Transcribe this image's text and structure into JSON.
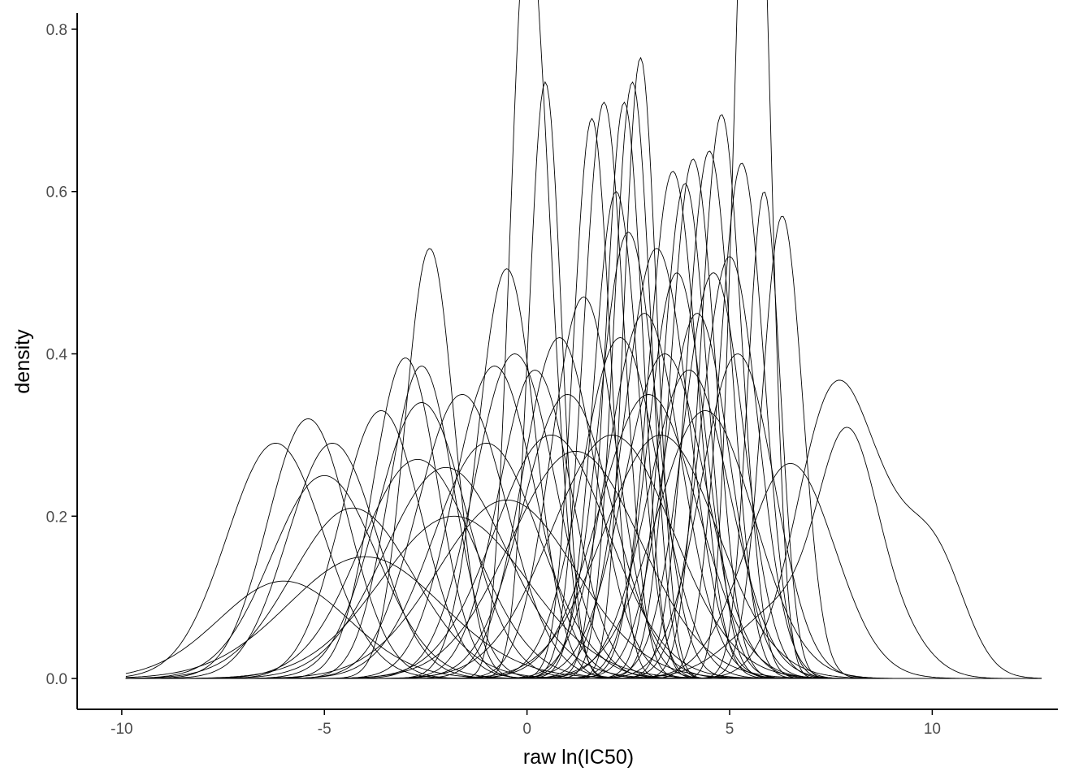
{
  "chart_data": {
    "type": "line",
    "title": "",
    "xlabel": "raw ln(IC50)",
    "ylabel": "density",
    "xlim": [
      -11.1,
      13.1
    ],
    "ylim": [
      -0.038,
      0.82
    ],
    "x_ticks": [
      -10,
      -5,
      0,
      5,
      10
    ],
    "x_tick_labels": [
      "-10",
      "-5",
      "0",
      "5",
      "10"
    ],
    "y_ticks": [
      0.0,
      0.2,
      0.4,
      0.6,
      0.8
    ],
    "y_tick_labels": [
      "0.0",
      "0.2",
      "0.4",
      "0.6",
      "0.8"
    ],
    "x_range_of_curves": [
      -9.9,
      12.7
    ],
    "grid": false,
    "legend": "none",
    "line_color": "#000000",
    "series": [
      {
        "peaks": [
          [
            -6.2,
            0.29,
            1.2
          ]
        ]
      },
      {
        "peaks": [
          [
            -5.4,
            0.32,
            1.0
          ]
        ]
      },
      {
        "peaks": [
          [
            -5.0,
            0.25,
            1.3
          ]
        ]
      },
      {
        "peaks": [
          [
            -4.8,
            0.29,
            1.1
          ]
        ]
      },
      {
        "peaks": [
          [
            -4.3,
            0.21,
            1.5
          ]
        ]
      },
      {
        "peaks": [
          [
            -3.6,
            0.33,
            1.0
          ]
        ]
      },
      {
        "peaks": [
          [
            -3.0,
            0.395,
            0.8
          ]
        ]
      },
      {
        "peaks": [
          [
            -2.6,
            0.385,
            0.8
          ]
        ]
      },
      {
        "peaks": [
          [
            -2.6,
            0.34,
            1.1
          ]
        ]
      },
      {
        "peaks": [
          [
            -2.4,
            0.53,
            0.6
          ]
        ]
      },
      {
        "peaks": [
          [
            -2.7,
            0.27,
            1.4
          ]
        ]
      },
      {
        "peaks": [
          [
            -2.0,
            0.26,
            1.5
          ]
        ]
      },
      {
        "peaks": [
          [
            -1.6,
            0.35,
            1.1
          ]
        ]
      },
      {
        "peaks": [
          [
            -1.0,
            0.29,
            1.3
          ]
        ]
      },
      {
        "peaks": [
          [
            -0.8,
            0.385,
            1.0
          ]
        ]
      },
      {
        "peaks": [
          [
            -0.5,
            0.505,
            0.7
          ]
        ]
      },
      {
        "peaks": [
          [
            -0.3,
            0.4,
            1.0
          ]
        ]
      },
      {
        "peaks": [
          [
            -0.1,
            0.66,
            0.38
          ],
          [
            0.4,
            0.45,
            0.45
          ]
        ]
      },
      {
        "peaks": [
          [
            0.45,
            0.735,
            0.4
          ]
        ]
      },
      {
        "peaks": [
          [
            0.2,
            0.38,
            0.9
          ]
        ]
      },
      {
        "peaks": [
          [
            0.8,
            0.42,
            0.9
          ]
        ]
      },
      {
        "peaks": [
          [
            1.4,
            0.47,
            0.8
          ]
        ]
      },
      {
        "peaks": [
          [
            1.6,
            0.69,
            0.45
          ]
        ]
      },
      {
        "peaks": [
          [
            1.9,
            0.71,
            0.5
          ]
        ]
      },
      {
        "peaks": [
          [
            2.2,
            0.6,
            0.55
          ]
        ]
      },
      {
        "peaks": [
          [
            2.4,
            0.71,
            0.45
          ]
        ]
      },
      {
        "peaks": [
          [
            2.6,
            0.735,
            0.45
          ]
        ]
      },
      {
        "peaks": [
          [
            2.8,
            0.765,
            0.4
          ]
        ]
      },
      {
        "peaks": [
          [
            2.5,
            0.55,
            0.7
          ]
        ]
      },
      {
        "peaks": [
          [
            2.9,
            0.45,
            0.9
          ]
        ]
      },
      {
        "peaks": [
          [
            3.2,
            0.53,
            0.8
          ]
        ]
      },
      {
        "peaks": [
          [
            3.6,
            0.625,
            0.6
          ]
        ]
      },
      {
        "peaks": [
          [
            3.9,
            0.61,
            0.55
          ]
        ]
      },
      {
        "peaks": [
          [
            4.1,
            0.64,
            0.55
          ]
        ]
      },
      {
        "peaks": [
          [
            4.5,
            0.65,
            0.55
          ]
        ]
      },
      {
        "peaks": [
          [
            4.8,
            0.695,
            0.5
          ]
        ]
      },
      {
        "peaks": [
          [
            5.4,
            0.77,
            0.38
          ],
          [
            5.75,
            0.62,
            0.35
          ]
        ]
      },
      {
        "peaks": [
          [
            5.3,
            0.635,
            0.55
          ]
        ]
      },
      {
        "peaks": [
          [
            5.85,
            0.6,
            0.4
          ]
        ]
      },
      {
        "peaks": [
          [
            6.3,
            0.57,
            0.5
          ]
        ]
      },
      {
        "peaks": [
          [
            4.6,
            0.5,
            0.75
          ]
        ]
      },
      {
        "peaks": [
          [
            5.0,
            0.52,
            0.7
          ]
        ]
      },
      {
        "peaks": [
          [
            3.4,
            0.4,
            1.0
          ]
        ]
      },
      {
        "peaks": [
          [
            4.2,
            0.45,
            0.8
          ]
        ]
      },
      {
        "peaks": [
          [
            3.0,
            0.35,
            1.2
          ]
        ]
      },
      {
        "peaks": [
          [
            2.1,
            0.3,
            1.5
          ]
        ]
      },
      {
        "peaks": [
          [
            1.2,
            0.28,
            1.6
          ]
        ]
      },
      {
        "peaks": [
          [
            0.6,
            0.3,
            1.4
          ]
        ]
      },
      {
        "peaks": [
          [
            4.0,
            0.38,
            1.0
          ]
        ]
      },
      {
        "peaks": [
          [
            5.2,
            0.4,
            0.9
          ]
        ]
      },
      {
        "peaks": [
          [
            3.7,
            0.5,
            0.7
          ]
        ]
      },
      {
        "peaks": [
          [
            2.3,
            0.42,
            0.95
          ]
        ]
      },
      {
        "peaks": [
          [
            1.0,
            0.35,
            1.1
          ]
        ]
      },
      {
        "peaks": [
          [
            3.3,
            0.3,
            1.4
          ]
        ]
      },
      {
        "peaks": [
          [
            4.4,
            0.33,
            1.2
          ]
        ]
      },
      {
        "peaks": [
          [
            -1.8,
            0.2,
            1.8
          ]
        ]
      },
      {
        "peaks": [
          [
            -0.5,
            0.22,
            1.7
          ]
        ]
      },
      {
        "peaks": [
          [
            -6.0,
            0.12,
            1.6
          ]
        ]
      },
      {
        "peaks": [
          [
            -4.0,
            0.15,
            1.9
          ]
        ]
      },
      {
        "peaks": [
          [
            6.5,
            0.265,
            1.1
          ]
        ]
      },
      {
        "peaks": [
          [
            7.5,
            0.315,
            0.9
          ],
          [
            9.0,
            0.14,
            1.0
          ],
          [
            10.2,
            0.095,
            0.7
          ]
        ]
      },
      {
        "peaks": [
          [
            7.9,
            0.245,
            0.7
          ],
          [
            6.4,
            0.09,
            1.2
          ],
          [
            9.0,
            0.06,
            0.8
          ]
        ]
      }
    ]
  }
}
